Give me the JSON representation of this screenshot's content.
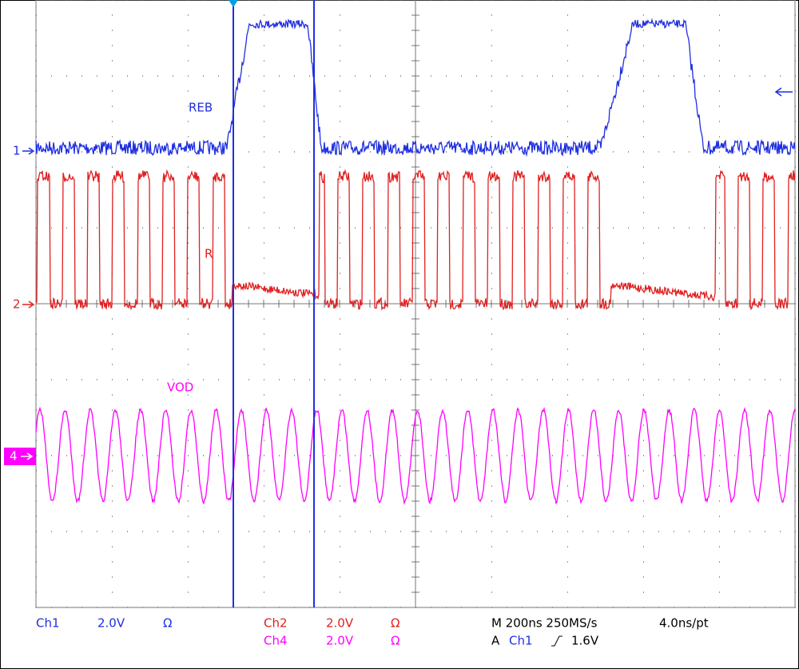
{
  "traces": [
    {
      "label": "REB"
    },
    {
      "label": "R"
    },
    {
      "label": "VOD"
    }
  ],
  "channel_markers": [
    "1",
    "2",
    "4"
  ],
  "status": {
    "ch1": {
      "name": "Ch1",
      "scale": "2.0V",
      "coupling": "Ω"
    },
    "ch2": {
      "name": "Ch2",
      "scale": "2.0V",
      "coupling": "Ω"
    },
    "ch4": {
      "name": "Ch4",
      "scale": "2.0V",
      "coupling": "Ω"
    },
    "timebase": "M 200ns 250MS/s",
    "resolution": "4.0ns/pt",
    "trigger": {
      "mode": "A",
      "source": "Ch1",
      "level": "1.6V"
    }
  }
}
